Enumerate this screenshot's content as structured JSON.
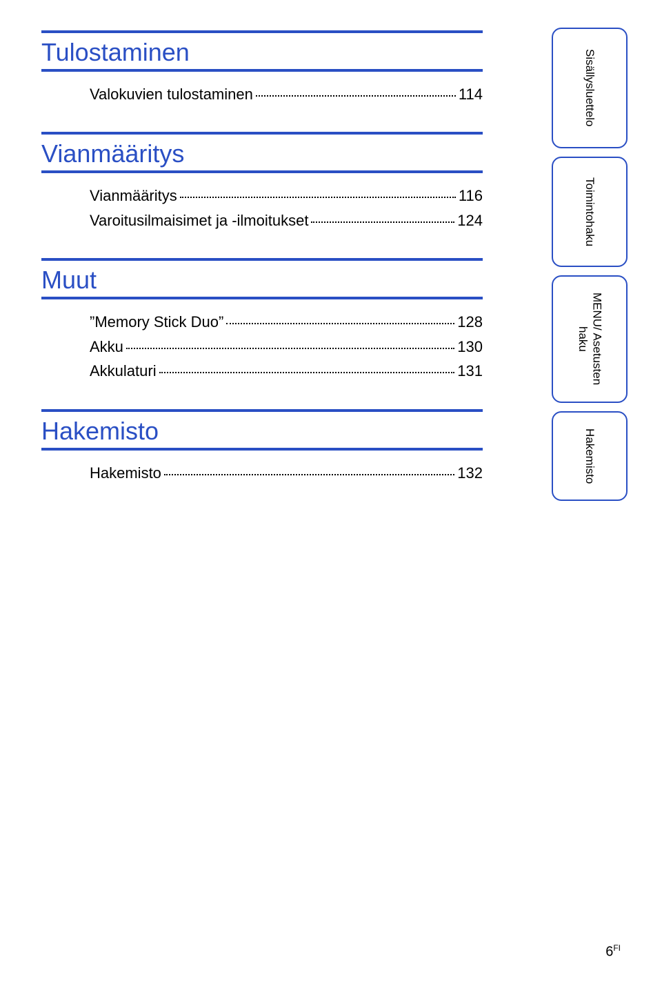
{
  "colors": {
    "accent": "#2a4fc4",
    "text": "#000000",
    "background": "#ffffff"
  },
  "typography": {
    "heading_fontsize": 36,
    "entry_fontsize": 22,
    "tab_fontsize": 17
  },
  "sections": {
    "tulostaminen": {
      "heading": "Tulostaminen",
      "entries": [
        {
          "label": "Valokuvien tulostaminen",
          "page": "114"
        }
      ]
    },
    "vianmaaritys": {
      "heading": "Vianmääritys",
      "entries": [
        {
          "label": "Vianmääritys",
          "page": "116"
        },
        {
          "label": "Varoitusilmaisimet ja -ilmoitukset",
          "page": "124"
        }
      ]
    },
    "muut": {
      "heading": "Muut",
      "entries": [
        {
          "label": "”Memory Stick Duo”",
          "page": "128"
        },
        {
          "label": "Akku",
          "page": "130"
        },
        {
          "label": "Akkulaturi",
          "page": "131"
        }
      ]
    },
    "hakemisto": {
      "heading": "Hakemisto",
      "entries": [
        {
          "label": "Hakemisto",
          "page": "132"
        }
      ]
    }
  },
  "side_tabs": [
    "Sisällysluettelo",
    "Toimintohaku",
    "MENU/\nAsetusten haku",
    "Hakemisto"
  ],
  "footer": {
    "page_number": "6",
    "page_suffix": "FI"
  }
}
